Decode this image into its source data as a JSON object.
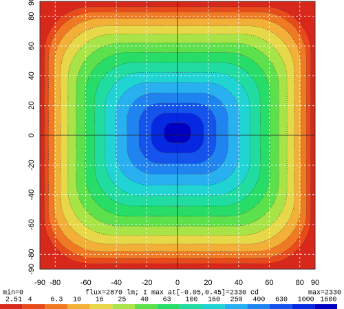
{
  "chart_data": {
    "type": "heatmap",
    "xlim": [
      -90,
      90
    ],
    "ylim": [
      -90,
      90
    ],
    "xticks": [
      -90,
      -80,
      -60,
      -40,
      -20,
      0,
      20,
      40,
      60,
      80,
      90
    ],
    "yticks": [
      -90,
      -80,
      -60,
      -40,
      -20,
      0,
      20,
      40,
      60,
      80,
      90
    ],
    "grid": true,
    "min_label": "min=0",
    "info": "flux=2870 lm; I max at[-0.05,0.45]=2330 cd",
    "max_label": "max=2330",
    "colorbar": {
      "values": [
        2.51,
        4,
        6.3,
        10,
        16,
        25,
        40,
        63,
        100,
        160,
        250,
        400,
        630,
        1000,
        1600
      ],
      "colors": [
        "#d8281c",
        "#e84a1c",
        "#f07a24",
        "#f2b038",
        "#e6d848",
        "#a8e448",
        "#5ce04c",
        "#28dc68",
        "#20dca0",
        "#20d4d4",
        "#28b0f0",
        "#2084f0",
        "#1454ec",
        "#0628e0",
        "#0000c4"
      ]
    }
  }
}
